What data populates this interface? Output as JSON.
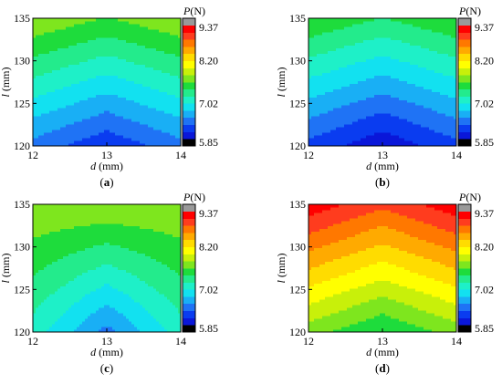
{
  "palette": [
    "#000000",
    "#0a17d9",
    "#0a3cf0",
    "#1f73f5",
    "#19aff5",
    "#12e1f0",
    "#1ef0c8",
    "#23eb8c",
    "#1edc3c",
    "#7ee61e",
    "#c8f00a",
    "#ffff00",
    "#ffdc00",
    "#ffaa00",
    "#ff7800",
    "#ff3c1e",
    "#ff0000",
    "#999999"
  ],
  "shared": {
    "colorbar_label": "P(N)",
    "colorbar_ticks": [
      "9.37",
      "8.20",
      "7.02",
      "5.85"
    ],
    "colorbar_values": [
      9.37,
      8.2,
      7.02,
      5.85
    ],
    "xlabel": "d (mm)",
    "ylabel": "l (mm)",
    "x_ticks": [
      "12",
      "13",
      "14"
    ],
    "y_ticks": [
      "135",
      "130",
      "125",
      "120"
    ]
  },
  "chart_data": [
    {
      "type": "heatmap",
      "panel_label": "(a)",
      "x": [
        12,
        13,
        14
      ],
      "y": [
        120,
        135
      ],
      "z": [
        [
          6.6,
          6.3,
          6.6
        ],
        [
          7.9,
          7.7,
          7.9
        ]
      ],
      "ylim": [
        120,
        135
      ],
      "xlim": [
        12,
        14
      ],
      "zlim": [
        5.85,
        9.37
      ]
    },
    {
      "type": "heatmap",
      "panel_label": "(b)",
      "x": [
        12,
        13,
        14
      ],
      "y": [
        120,
        135
      ],
      "z": [
        [
          6.4,
          6.1,
          6.4
        ],
        [
          7.7,
          7.5,
          7.7
        ]
      ],
      "ylim": [
        120,
        135
      ],
      "xlim": [
        12,
        14
      ],
      "zlim": [
        5.85,
        9.37
      ]
    },
    {
      "type": "heatmap",
      "panel_label": "(c)",
      "x": [
        12,
        13,
        14
      ],
      "y": [
        120,
        135
      ],
      "z": [
        [
          7.2,
          6.6,
          7.2
        ],
        [
          7.9,
          7.9,
          7.9
        ]
      ],
      "ylim": [
        120,
        135
      ],
      "xlim": [
        12,
        14
      ],
      "zlim": [
        5.85,
        9.37
      ]
    },
    {
      "type": "heatmap",
      "panel_label": "(d)",
      "x": [
        12,
        13,
        14
      ],
      "y": [
        120,
        135
      ],
      "z": [
        [
          7.8,
          7.5,
          7.8
        ],
        [
          9.3,
          9.0,
          9.3
        ]
      ],
      "ylim": [
        120,
        135
      ],
      "xlim": [
        12,
        14
      ],
      "zlim": [
        5.85,
        9.37
      ]
    }
  ]
}
